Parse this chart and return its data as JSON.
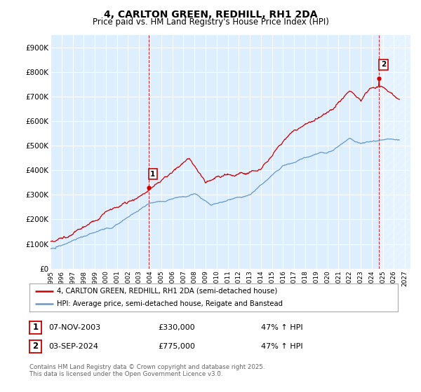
{
  "title_line1": "4, CARLTON GREEN, REDHILL, RH1 2DA",
  "title_line2": "Price paid vs. HM Land Registry's House Price Index (HPI)",
  "ylim": [
    0,
    950000
  ],
  "yticks": [
    0,
    100000,
    200000,
    300000,
    400000,
    500000,
    600000,
    700000,
    800000,
    900000
  ],
  "ytick_labels": [
    "£0",
    "£100K",
    "£200K",
    "£300K",
    "£400K",
    "£500K",
    "£600K",
    "£700K",
    "£800K",
    "£900K"
  ],
  "xlim_start": 1995.0,
  "xlim_end": 2027.5,
  "xticks": [
    1995,
    1996,
    1997,
    1998,
    1999,
    2000,
    2001,
    2002,
    2003,
    2004,
    2005,
    2006,
    2007,
    2008,
    2009,
    2010,
    2011,
    2012,
    2013,
    2014,
    2015,
    2016,
    2017,
    2018,
    2019,
    2020,
    2021,
    2022,
    2023,
    2024,
    2025,
    2026,
    2027
  ],
  "sale1_date": 2003.85,
  "sale1_price": 330000,
  "sale2_date": 2024.67,
  "sale2_price": 775000,
  "sale1_info": "07-NOV-2003",
  "sale1_amount": "£330,000",
  "sale1_hpi": "47% ↑ HPI",
  "sale2_info": "03-SEP-2024",
  "sale2_amount": "£775,000",
  "sale2_hpi": "47% ↑ HPI",
  "legend_label1": "4, CARLTON GREEN, REDHILL, RH1 2DA (semi-detached house)",
  "legend_label2": "HPI: Average price, semi-detached house, Reigate and Banstead",
  "footer": "Contains HM Land Registry data © Crown copyright and database right 2025.\nThis data is licensed under the Open Government Licence v3.0.",
  "line1_color": "#cc0000",
  "line2_color": "#6699cc",
  "bg_color": "#ffffff",
  "plot_bg_color": "#ddeeff",
  "grid_color": "#ffffff",
  "hatch_color": "#cccccc"
}
